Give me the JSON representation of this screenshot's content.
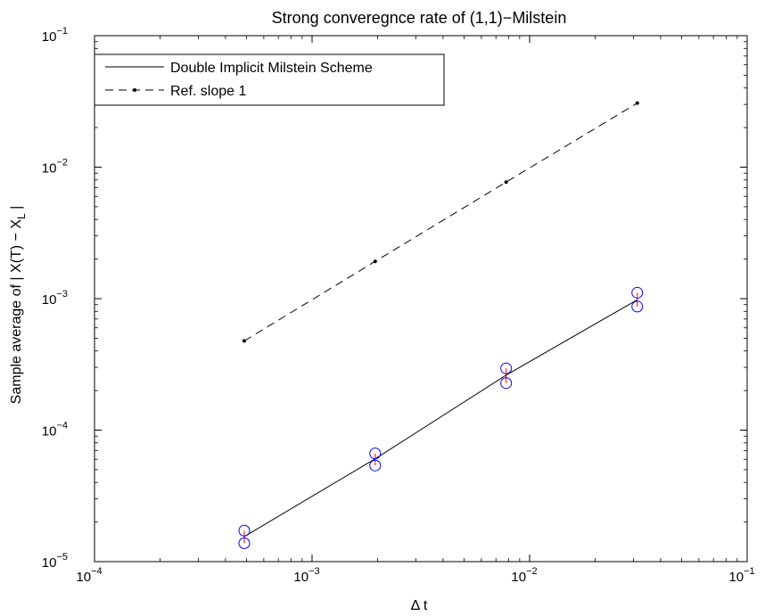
{
  "chart_data": {
    "type": "line",
    "title": "Strong converegnce rate of (1,1)−Milstein",
    "xlabel": "Δ t",
    "ylabel_main": "Sample average of | X(T) − X",
    "ylabel_sub": "L",
    "ylabel_end": " |",
    "xscale": "log",
    "yscale": "log",
    "xlim": [
      0.0001,
      0.1
    ],
    "ylim": [
      1e-05,
      0.1
    ],
    "grid": false,
    "legend_position": "top-left",
    "x_ticks": [
      {
        "value": 0.0001,
        "base": "10",
        "exp": "−4"
      },
      {
        "value": 0.001,
        "base": "10",
        "exp": "−3"
      },
      {
        "value": 0.01,
        "base": "10",
        "exp": "−2"
      },
      {
        "value": 0.1,
        "base": "10",
        "exp": "−1"
      }
    ],
    "y_ticks": [
      {
        "value": 1e-05,
        "base": "10",
        "exp": "−5"
      },
      {
        "value": 0.0001,
        "base": "10",
        "exp": "−4"
      },
      {
        "value": 0.001,
        "base": "10",
        "exp": "−3"
      },
      {
        "value": 0.01,
        "base": "10",
        "exp": "−2"
      },
      {
        "value": 0.1,
        "base": "10",
        "exp": "−1"
      }
    ],
    "series": [
      {
        "name": "Double Implicit Milstein Scheme",
        "style": "solid",
        "color": "#000000",
        "x": [
          0.000488,
          0.00195,
          0.0078,
          0.03125
        ],
        "y": [
          1.55e-05,
          6.05e-05,
          0.000262,
          0.00098
        ]
      },
      {
        "name": "Ref. slope 1",
        "style": "dashed",
        "marker": "dot",
        "color": "#000000",
        "x": [
          0.000488,
          0.00195,
          0.0078,
          0.03125
        ],
        "y": [
          0.000477,
          0.00192,
          0.0077,
          0.0307
        ]
      }
    ],
    "error_bars": {
      "circle_color": "#0000ff",
      "bar_color": "#ff0000",
      "points": [
        {
          "x": 0.000488,
          "upper": 1.72e-05,
          "lower": 1.38e-05
        },
        {
          "x": 0.00195,
          "upper": 6.65e-05,
          "lower": 5.38e-05
        },
        {
          "x": 0.0078,
          "upper": 0.000295,
          "lower": 0.000228
        },
        {
          "x": 0.03125,
          "upper": 0.00111,
          "lower": 0.00087
        }
      ]
    }
  }
}
